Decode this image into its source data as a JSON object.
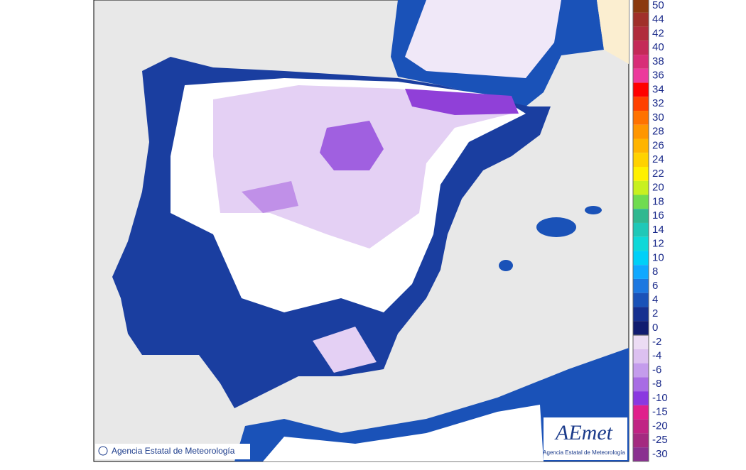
{
  "map": {
    "copyright": "Agencia Estatal de Meteorología",
    "logo": {
      "name": "AEmet",
      "subtitle": "Agencia Estatal de Meteorología"
    },
    "legend_positive": [
      {
        "label": "50",
        "color": "#8b3a10"
      },
      {
        "label": "44",
        "color": "#a0302a"
      },
      {
        "label": "42",
        "color": "#b02c3c"
      },
      {
        "label": "40",
        "color": "#c42a58"
      },
      {
        "label": "38",
        "color": "#d82e78"
      },
      {
        "label": "36",
        "color": "#ec3a9c"
      },
      {
        "label": "34",
        "color": "#ff0000"
      },
      {
        "label": "32",
        "color": "#ff4000"
      },
      {
        "label": "30",
        "color": "#ff7200"
      },
      {
        "label": "28",
        "color": "#ff9600"
      },
      {
        "label": "26",
        "color": "#ffb400"
      },
      {
        "label": "24",
        "color": "#ffd200"
      },
      {
        "label": "22",
        "color": "#fff000"
      },
      {
        "label": "20",
        "color": "#c8f020"
      },
      {
        "label": "18",
        "color": "#70dc50"
      },
      {
        "label": "16",
        "color": "#30b890"
      },
      {
        "label": "14",
        "color": "#20c8b8"
      },
      {
        "label": "12",
        "color": "#10d8d8"
      },
      {
        "label": "10",
        "color": "#00d0f8"
      },
      {
        "label": "8",
        "color": "#10a8ff"
      },
      {
        "label": "6",
        "color": "#1c78e0"
      },
      {
        "label": "4",
        "color": "#1a52b8"
      },
      {
        "label": "2",
        "color": "#163090"
      },
      {
        "label": "0",
        "color": "#101c70"
      }
    ],
    "legend_negative": [
      {
        "label": "-2",
        "color": "#ecdcf4"
      },
      {
        "label": "-4",
        "color": "#dcc0f0"
      },
      {
        "label": "-6",
        "color": "#c49cec"
      },
      {
        "label": "-8",
        "color": "#a86ce4"
      },
      {
        "label": "-10",
        "color": "#8a38e0"
      },
      {
        "label": "-15",
        "color": "#e0208c"
      },
      {
        "label": "-20",
        "color": "#c02484"
      },
      {
        "label": "-25",
        "color": "#a42a80"
      },
      {
        "label": "-30",
        "color": "#8a3090"
      }
    ]
  }
}
